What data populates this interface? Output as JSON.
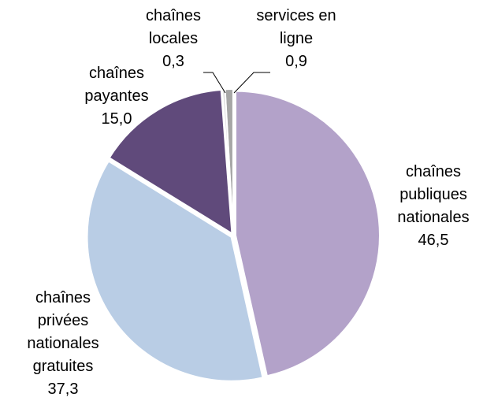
{
  "chart_data": {
    "type": "pie",
    "categories": [
      "chaînes\npubliques\nnationales",
      "chaînes\nprivées\nnationales\ngratuites",
      "chaînes\npayantes",
      "chaînes\nlocales",
      "services en\nligne"
    ],
    "values": [
      46.5,
      37.3,
      15.0,
      0.3,
      0.9
    ],
    "value_labels": [
      "46,5",
      "37,3",
      "15,0",
      "0,3",
      "0,9"
    ],
    "colors": [
      "#b3a2c9",
      "#b9cde5",
      "#604a7b",
      "#d9d9d9",
      "#a6a6a6"
    ]
  }
}
